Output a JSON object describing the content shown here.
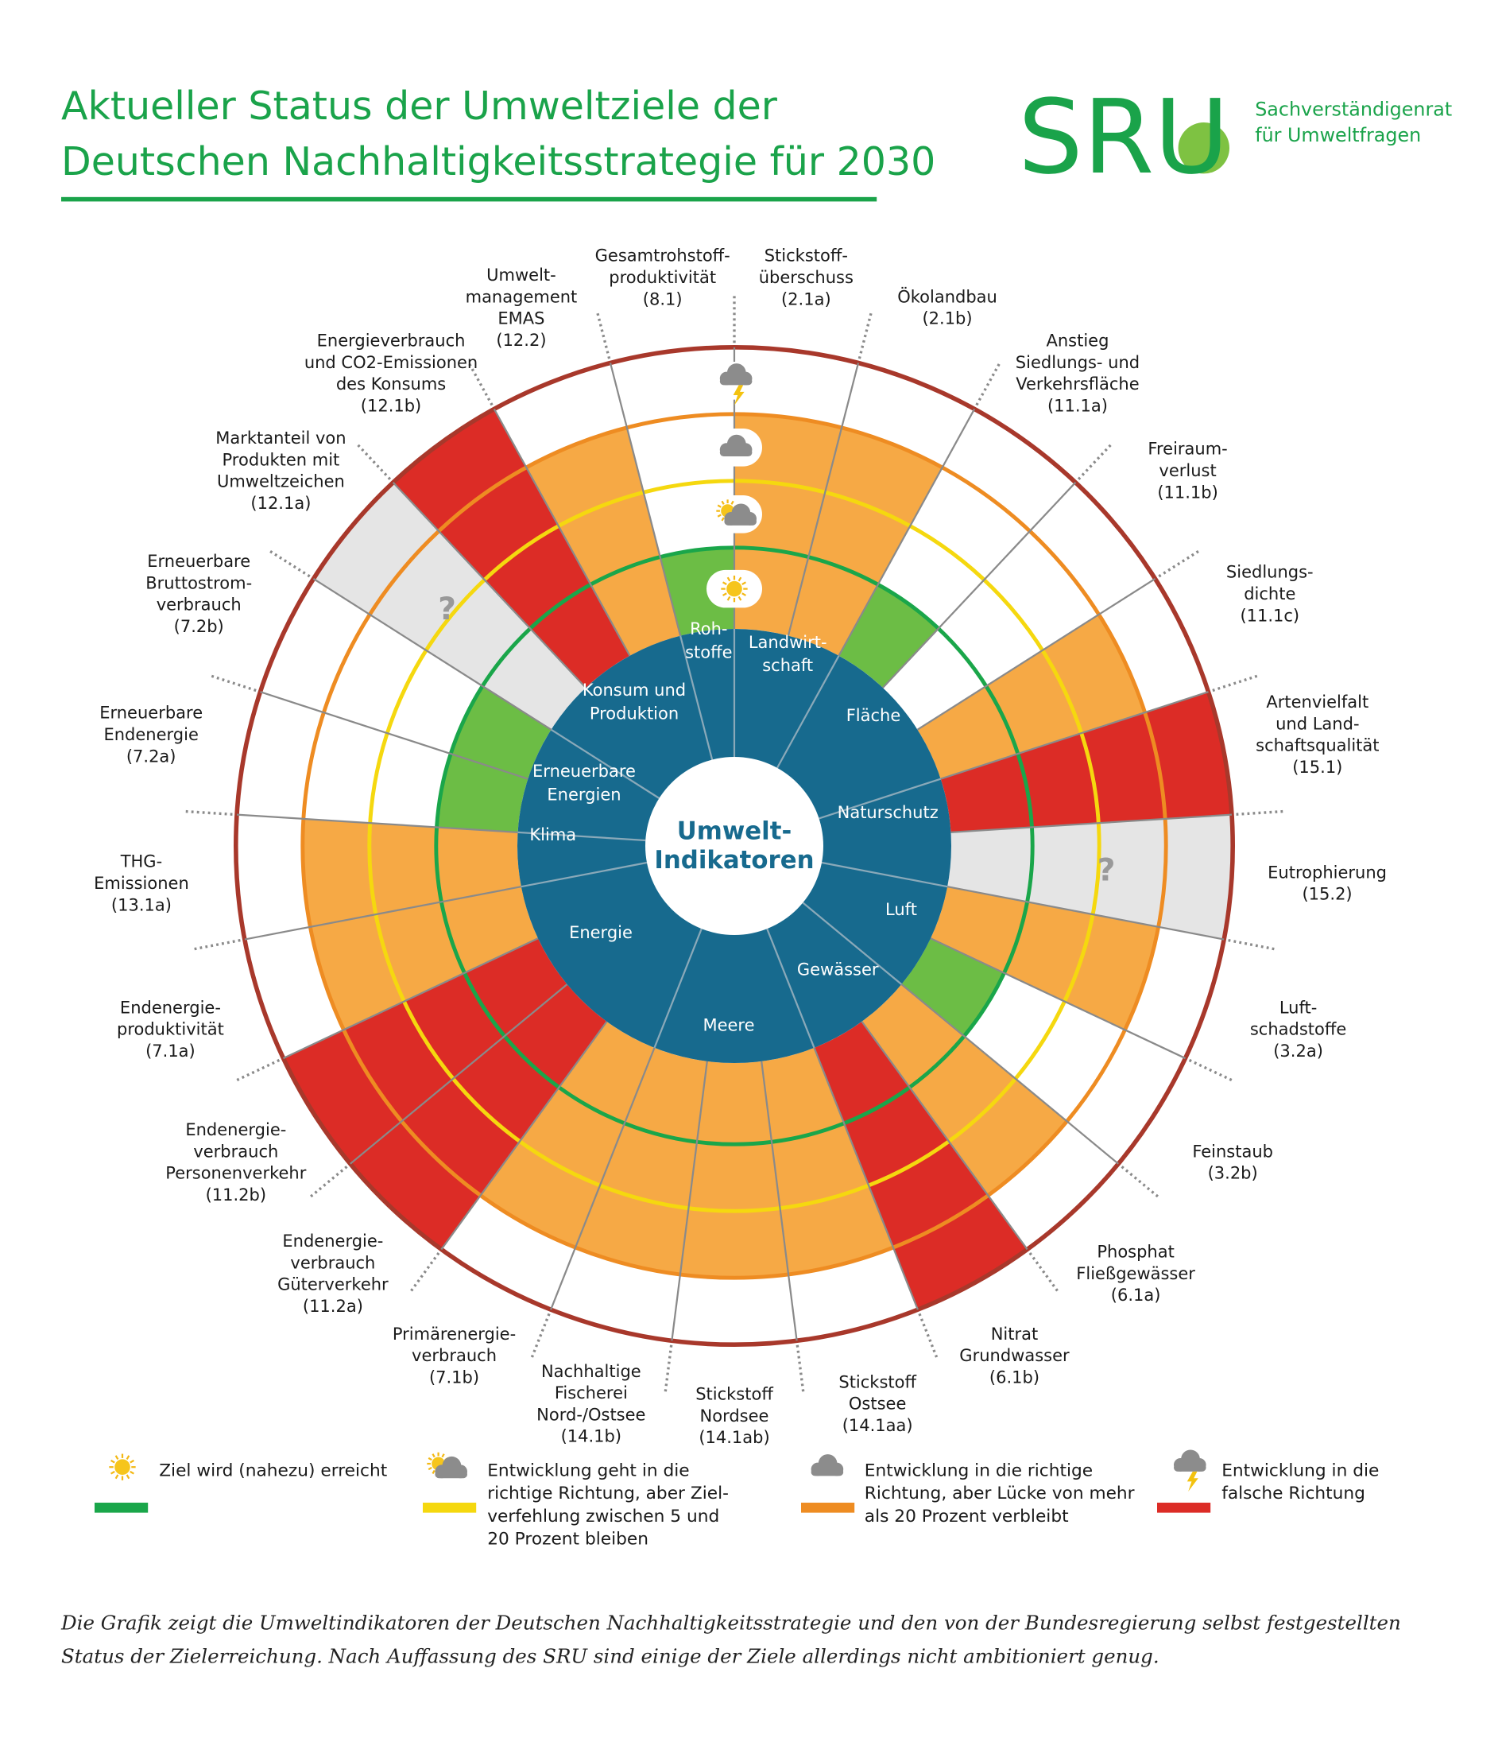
{
  "header": {
    "title": [
      "Aktueller Status der Umweltziele der",
      "Deutschen Nachhaltigkeitsstrategie für 2030"
    ],
    "logo": "SRU",
    "organization": [
      "Sachverständigenrat",
      "für Umweltfragen"
    ]
  },
  "center": [
    "Umwelt-",
    "Indikatoren"
  ],
  "status_colors": {
    "green": "#6cbd45",
    "orange": "#f6a945",
    "red": "#dc2c26",
    "unknown": "#e5e5e5"
  },
  "categories": [
    {
      "name": [
        "Landwirt-",
        "schaft"
      ],
      "indicators": [
        {
          "label": [
            "Stickstoff-",
            "überschuss"
          ],
          "code": "(2.1a)",
          "status": "orange"
        },
        {
          "label": [
            "Ökolandbau"
          ],
          "code": "(2.1b)",
          "status": "orange"
        }
      ]
    },
    {
      "name": [
        "Fläche"
      ],
      "indicators": [
        {
          "label": [
            "Anstieg",
            "Siedlungs- und",
            "Verkehrsfläche"
          ],
          "code": "(11.1a)",
          "status": "green"
        },
        {
          "label": [
            "Freiraum-",
            "verlust"
          ],
          "code": "(11.1b)",
          "status": "none"
        },
        {
          "label": [
            "Siedlungs-",
            "dichte"
          ],
          "code": "(11.1c)",
          "status": "orange"
        }
      ]
    },
    {
      "name": [
        "Naturschutz"
      ],
      "indicators": [
        {
          "label": [
            "Artenvielfalt",
            "und Land-",
            "schaftsqualität"
          ],
          "code": "(15.1)",
          "status": "red"
        },
        {
          "label": [
            "Eutrophierung"
          ],
          "code": "(15.2)",
          "status": "unknown",
          "mark": "?"
        }
      ]
    },
    {
      "name": [
        "Luft"
      ],
      "indicators": [
        {
          "label": [
            "Luft-",
            "schadstoffe"
          ],
          "code": "(3.2a)",
          "status": "orange"
        },
        {
          "label": [
            "Feinstaub"
          ],
          "code": "(3.2b)",
          "status": "green"
        }
      ]
    },
    {
      "name": [
        "Gewässer"
      ],
      "indicators": [
        {
          "label": [
            "Phosphat",
            "Fließgewässer"
          ],
          "code": "(6.1a)",
          "status": "orange"
        },
        {
          "label": [
            "Nitrat",
            "Grundwasser"
          ],
          "code": "(6.1b)",
          "status": "red"
        }
      ]
    },
    {
      "name": [
        "Meere"
      ],
      "indicators": [
        {
          "label": [
            "Stickstoff",
            "Ostsee"
          ],
          "code": "(14.1aa)",
          "status": "orange"
        },
        {
          "label": [
            "Stickstoff",
            "Nordsee"
          ],
          "code": "(14.1ab)",
          "status": "orange"
        },
        {
          "label": [
            "Nachhaltige",
            "Fischerei",
            "Nord-/Ostsee"
          ],
          "code": "(14.1b)",
          "status": "orange"
        }
      ]
    },
    {
      "name": [
        "Energie"
      ],
      "indicators": [
        {
          "label": [
            "Primärenergie-",
            "verbrauch"
          ],
          "code": "(7.1b)",
          "status": "orange"
        },
        {
          "label": [
            "Endenergie-",
            "verbrauch",
            "Güterverkehr"
          ],
          "code": "(11.2a)",
          "status": "red"
        },
        {
          "label": [
            "Endenergie-",
            "verbrauch",
            "Personenverkehr"
          ],
          "code": "(11.2b)",
          "status": "red"
        },
        {
          "label": [
            "Endenergie-",
            "produktivität"
          ],
          "code": "(7.1a)",
          "status": "orange"
        }
      ]
    },
    {
      "name": [
        "Klima"
      ],
      "indicators": [
        {
          "label": [
            "THG-",
            "Emissionen"
          ],
          "code": "(13.1a)",
          "status": "orange"
        }
      ]
    },
    {
      "name": [
        "Erneuerbare",
        "Energien"
      ],
      "indicators": [
        {
          "label": [
            "Erneuerbare",
            "Endenergie"
          ],
          "code": "(7.2a)",
          "status": "green"
        },
        {
          "label": [
            "Erneuerbare",
            "Bruttostrom-",
            "verbrauch"
          ],
          "code": "(7.2b)",
          "status": "green"
        }
      ]
    },
    {
      "name": [
        "Konsum und",
        "Produktion"
      ],
      "indicators": [
        {
          "label": [
            "Marktanteil von",
            "Produkten mit",
            "Umweltzeichen"
          ],
          "code": "(12.1a)",
          "status": "unknown",
          "mark": "?"
        },
        {
          "label": [
            "Energieverbrauch",
            "und CO2-Emissionen",
            "des Konsums"
          ],
          "code": "(12.1b)",
          "status": "red"
        },
        {
          "label": [
            "Umwelt-",
            "management",
            "EMAS"
          ],
          "code": "(12.2)",
          "status": "orange"
        }
      ]
    },
    {
      "name": [
        "Roh-",
        "stoffe"
      ],
      "indicators": [
        {
          "label": [
            "Gesamtrohstoff-",
            "produktivität"
          ],
          "code": "(8.1)",
          "status": "green"
        }
      ]
    }
  ],
  "legend": [
    {
      "status": "green",
      "text": [
        "Ziel wird (nahezu) erreicht"
      ],
      "color": "#1aa64a",
      "ring": "#1aa64a"
    },
    {
      "status": "yellow",
      "text": [
        "Entwicklung geht in die",
        "richtige Richtung, aber Ziel-",
        "verfehlung zwischen 5 und",
        "20 Prozent bleiben"
      ],
      "color": "#f5d80f",
      "ring": "#f5d80f"
    },
    {
      "status": "orange",
      "text": [
        "Entwicklung in die richtige",
        "Richtung, aber Lücke von mehr",
        "als 20 Prozent verbleibt"
      ],
      "color": "#ee8c22",
      "ring": "#ee8c22"
    },
    {
      "status": "red",
      "text": [
        "Entwicklung in die",
        "falsche Richtung"
      ],
      "color": "#dc2c26",
      "ring": "#a8382b"
    }
  ],
  "footnote": [
    "Die Grafik zeigt die Umweltindikatoren der Deutschen Nachhaltigkeitsstrategie und den von der Bundesregierung selbst festgestellten",
    "Status der Zielerreichung. Nach Auffassung des SRU sind einige der Ziele allerdings nicht ambitioniert genug."
  ]
}
